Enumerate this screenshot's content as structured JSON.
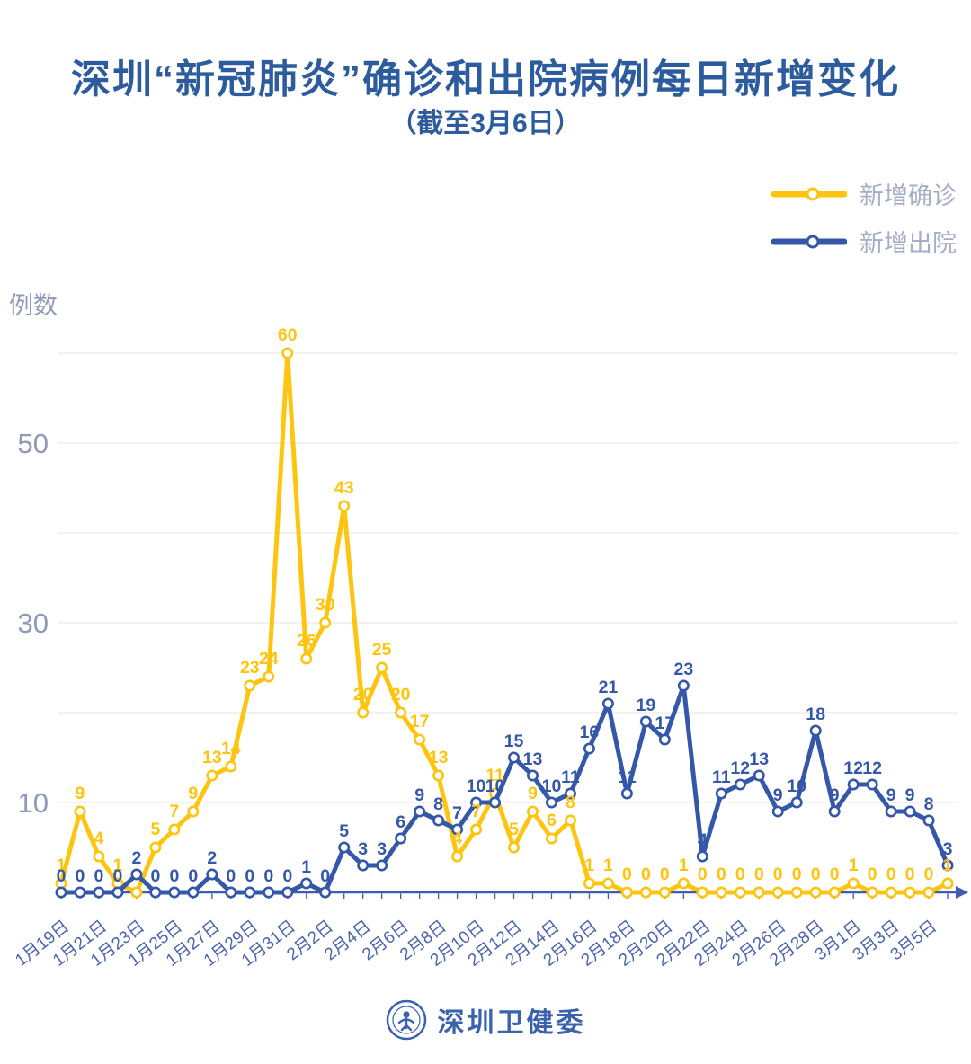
{
  "header": {
    "title": "深圳“新冠肺炎”确诊和出院病例每日新增变化",
    "subtitle": "（截至3月6日）"
  },
  "footer": {
    "org": "深圳卫健委"
  },
  "colors": {
    "confirmed": "#FDC50F",
    "discharged": "#3457A8",
    "title_text": "#2D5C9E",
    "legend_text": "#A6ADC7",
    "axis_tick_text": "#8E99BA",
    "date_text": "#4C64AC",
    "gridline": "#E9E9EF",
    "axis_line": "#3D5CB2"
  },
  "chart_data": {
    "type": "line",
    "title": "深圳“新冠肺炎”确诊和出院病例每日新增变化",
    "subtitle": "（截至3月6日）",
    "xlabel": "",
    "ylabel": "例数",
    "grid": true,
    "gridlines": [
      10,
      20,
      30,
      40,
      50,
      60
    ],
    "y_ticks": [
      10,
      30,
      50
    ],
    "ylim": [
      0,
      63
    ],
    "legend_position": "top-right",
    "x": [
      "1月19日",
      "1月20日",
      "1月21日",
      "1月22日",
      "1月23日",
      "1月24日",
      "1月25日",
      "1月26日",
      "1月27日",
      "1月28日",
      "1月29日",
      "1月30日",
      "1月31日",
      "2月1日",
      "2月2日",
      "2月3日",
      "2月4日",
      "2月5日",
      "2月6日",
      "2月7日",
      "2月8日",
      "2月9日",
      "2月10日",
      "2月11日",
      "2月12日",
      "2月13日",
      "2月14日",
      "2月15日",
      "2月16日",
      "2月17日",
      "2月18日",
      "2月19日",
      "2月20日",
      "2月21日",
      "2月22日",
      "2月23日",
      "2月24日",
      "2月25日",
      "2月26日",
      "2月27日",
      "2月28日",
      "2月29日",
      "3月1日",
      "3月2日",
      "3月3日",
      "3月4日",
      "3月5日",
      "3月6日"
    ],
    "x_tick_labels": [
      "1月19日",
      "1月21日",
      "1月23日",
      "1月25日",
      "1月27日",
      "1月29日",
      "1月31日",
      "2月2日",
      "2月4日",
      "2月6日",
      "2月8日",
      "2月10日",
      "2月12日",
      "2月14日",
      "2月16日",
      "2月18日",
      "2月20日",
      "2月22日",
      "2月24日",
      "2月26日",
      "2月28日",
      "3月1日",
      "3月3日",
      "3月5日"
    ],
    "series": [
      {
        "name": "新增确诊",
        "color": "#FDC50F",
        "values": [
          1,
          9,
          4,
          1,
          0,
          5,
          7,
          9,
          13,
          14,
          23,
          24,
          60,
          26,
          30,
          43,
          20,
          25,
          20,
          17,
          13,
          4,
          7,
          11,
          5,
          9,
          6,
          8,
          1,
          1,
          0,
          0,
          0,
          1,
          0,
          0,
          0,
          0,
          0,
          0,
          0,
          0,
          1,
          0,
          0,
          0,
          0,
          1
        ],
        "labels": [
          "1",
          "9",
          "4",
          "1",
          "",
          "5",
          "7",
          "9",
          "13",
          "14",
          "23",
          "24",
          "60",
          "26",
          "30",
          "43",
          "20",
          "25",
          "20",
          "17",
          "13",
          "4",
          "7",
          "11",
          "5",
          "9",
          "6",
          "8",
          "1",
          "1",
          "0",
          "0",
          "0",
          "1",
          "0",
          "0",
          "0",
          "0",
          "0",
          "0",
          "0",
          "0",
          "1",
          "0",
          "0",
          "0",
          "0",
          "1"
        ]
      },
      {
        "name": "新增出院",
        "color": "#3457A8",
        "values": [
          0,
          0,
          0,
          0,
          2,
          0,
          0,
          0,
          2,
          0,
          0,
          0,
          0,
          1,
          0,
          5,
          3,
          3,
          6,
          9,
          8,
          7,
          10,
          10,
          15,
          13,
          10,
          11,
          16,
          21,
          11,
          19,
          17,
          23,
          4,
          11,
          12,
          13,
          9,
          10,
          18,
          9,
          12,
          12,
          9,
          9,
          8,
          3
        ],
        "labels": [
          "0",
          "0",
          "0",
          "0",
          "2",
          "0",
          "0",
          "0",
          "2",
          "0",
          "0",
          "0",
          "0",
          "1",
          "0",
          "5",
          "3",
          "3",
          "6",
          "9",
          "8",
          "7",
          "10",
          "10",
          "15",
          "13",
          "10",
          "11",
          "16",
          "21",
          "11",
          "19",
          "17",
          "23",
          "4",
          "11",
          "12",
          "13",
          "9",
          "10",
          "18",
          "9",
          "12",
          "12",
          "9",
          "9",
          "8",
          "3"
        ]
      }
    ]
  }
}
